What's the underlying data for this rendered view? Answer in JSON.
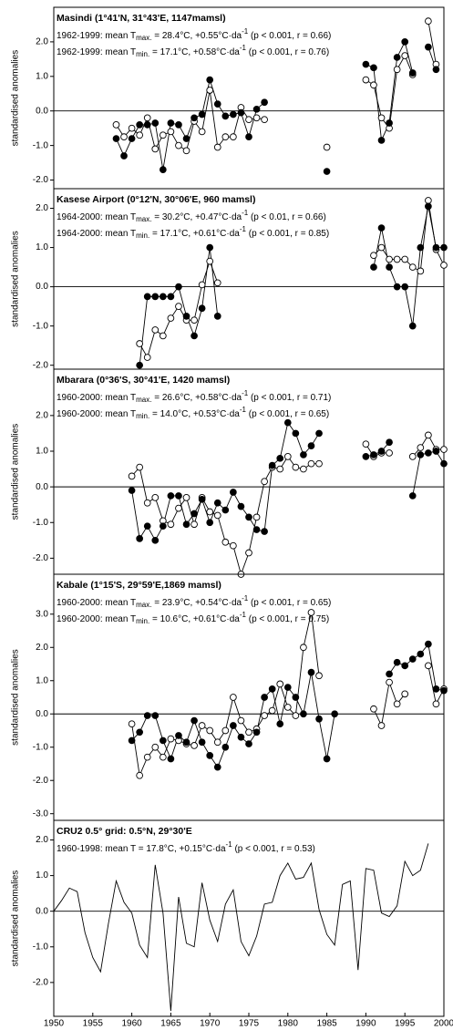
{
  "chart_data": [
    {
      "type": "line",
      "markers": true,
      "title": "Masindi (1°41'N, 31°43'E, 1147mamsl)",
      "stats": [
        {
          "prefix": "1962-1999: mean T",
          "sub": "max.",
          "mid": " = 28.4°C, +0.55°C·da",
          "sup": "-1",
          "suffix": " (p < 0.001, r = 0.66)"
        },
        {
          "prefix": "1962-1999: mean T",
          "sub": "min.",
          "mid": " = 17.1°C, +0.58°C·da",
          "sup": "-1",
          "suffix": " (p < 0.001, r = 0.76)"
        }
      ],
      "ylabel": "standardised anomalies",
      "xlim": [
        1950,
        2000
      ],
      "ylim": [
        -2.25,
        3.0
      ],
      "yticks": [
        {
          "value": -2,
          "label": "-2.0"
        },
        {
          "value": -1,
          "label": "-1.0"
        },
        {
          "value": 0,
          "label": "0.0"
        },
        {
          "value": 1,
          "label": "1.0"
        },
        {
          "value": 2,
          "label": "2.0"
        }
      ],
      "x": [
        1958,
        1959,
        1960,
        1961,
        1962,
        1963,
        1964,
        1965,
        1966,
        1967,
        1968,
        1969,
        1970,
        1971,
        1972,
        1973,
        1974,
        1975,
        1976,
        1977,
        1978,
        1979,
        1980,
        1981,
        1982,
        1983,
        1984,
        1985,
        1986,
        1987,
        1988,
        1989,
        1990,
        1991,
        1992,
        1993,
        1994,
        1995,
        1996,
        1997,
        1998,
        1999
      ],
      "series": [
        {
          "color": "#ffffff",
          "values": [
            -0.4,
            -0.75,
            -0.5,
            -0.7,
            -0.2,
            -1.1,
            -0.7,
            -0.6,
            -1.0,
            -1.15,
            -0.3,
            -0.6,
            0.6,
            -1.05,
            -0.75,
            -0.75,
            0.1,
            -0.25,
            -0.2,
            -0.25,
            null,
            null,
            null,
            null,
            null,
            null,
            null,
            -1.05,
            null,
            null,
            null,
            null,
            0.9,
            0.75,
            -0.2,
            -0.5,
            1.2,
            1.6,
            1.05,
            null,
            2.6,
            1.35
          ]
        },
        {
          "color": "#000000",
          "values": [
            -0.8,
            -1.3,
            -0.8,
            -0.4,
            -0.4,
            -0.35,
            -1.7,
            -0.35,
            -0.4,
            -0.8,
            -0.2,
            -0.1,
            0.9,
            0.2,
            -0.15,
            -0.1,
            -0.05,
            -0.75,
            0.05,
            0.25,
            null,
            null,
            null,
            null,
            null,
            null,
            null,
            -1.75,
            null,
            null,
            null,
            null,
            1.35,
            1.25,
            -0.85,
            -0.35,
            1.55,
            2.0,
            1.1,
            null,
            1.85,
            1.2
          ]
        }
      ]
    },
    {
      "type": "line",
      "markers": true,
      "title": "Kasese Airport (0°12'N, 30°06'E, 960 mamsl)",
      "stats": [
        {
          "prefix": "1964-2000: mean T",
          "sub": "max.",
          "mid": " = 30.2°C, +0.47°C·da",
          "sup": "-1",
          "suffix": " (p < 0.01, r = 0.66)"
        },
        {
          "prefix": "1964-2000: mean T",
          "sub": "min.",
          "mid": " = 17.1°C, +0.61°C·da",
          "sup": "-1",
          "suffix": " (p < 0.001, r = 0.85)"
        }
      ],
      "ylabel": "standardised anomalies",
      "xlim": [
        1950,
        2000
      ],
      "ylim": [
        -2.1,
        2.5
      ],
      "yticks": [
        {
          "value": -2,
          "label": "-2.0"
        },
        {
          "value": -1,
          "label": "-1.0"
        },
        {
          "value": 0,
          "label": "0.0"
        },
        {
          "value": 1,
          "label": "1.0"
        },
        {
          "value": 2,
          "label": "2.0"
        }
      ],
      "x": [
        1961,
        1962,
        1963,
        1964,
        1965,
        1966,
        1967,
        1968,
        1969,
        1970,
        1971,
        1972,
        1973,
        1974,
        1975,
        1976,
        1977,
        1978,
        1979,
        1980,
        1981,
        1982,
        1983,
        1984,
        1985,
        1986,
        1987,
        1988,
        1989,
        1990,
        1991,
        1992,
        1993,
        1994,
        1995,
        1996,
        1997,
        1998,
        1999,
        2000
      ],
      "series": [
        {
          "color": "#ffffff",
          "values": [
            -1.45,
            -1.8,
            -1.1,
            -1.25,
            -0.8,
            -0.5,
            -0.85,
            -0.85,
            0.05,
            0.65,
            0.1,
            null,
            null,
            null,
            null,
            null,
            null,
            null,
            null,
            null,
            null,
            null,
            null,
            null,
            null,
            null,
            null,
            null,
            null,
            null,
            0.8,
            1.0,
            0.7,
            0.7,
            0.7,
            0.5,
            0.4,
            2.2,
            0.95,
            0.55
          ]
        },
        {
          "color": "#000000",
          "values": [
            -2.0,
            -0.25,
            -0.25,
            -0.25,
            -0.25,
            0.0,
            -0.75,
            -1.25,
            -0.55,
            1.0,
            -0.75,
            null,
            null,
            null,
            null,
            null,
            null,
            null,
            null,
            null,
            null,
            null,
            null,
            null,
            null,
            null,
            null,
            null,
            null,
            null,
            0.5,
            1.5,
            0.5,
            0.0,
            0.0,
            -1.0,
            1.0,
            2.05,
            1.0,
            1.0
          ]
        }
      ]
    },
    {
      "type": "line",
      "markers": true,
      "title": "Mbarara (0°36'S, 30°41'E, 1420 mamsl)",
      "stats": [
        {
          "prefix": "1960-2000: mean T",
          "sub": "max.",
          "mid": " = 26.6°C, +0.58°C·da",
          "sup": "-1",
          "suffix": " (p < 0.001, r = 0.71)"
        },
        {
          "prefix": "1960-2000: mean T",
          "sub": "min.",
          "mid": " = 14.0°C, +0.53°C·da",
          "sup": "-1",
          "suffix": " (p < 0.001, r = 0.65)"
        }
      ],
      "ylabel": "standardised anomalies",
      "xlim": [
        1950,
        2000
      ],
      "ylim": [
        -2.45,
        3.3
      ],
      "yticks": [
        {
          "value": -2,
          "label": "-2.0"
        },
        {
          "value": -1,
          "label": "-1.0"
        },
        {
          "value": 0,
          "label": "0.0"
        },
        {
          "value": 1,
          "label": "1.0"
        },
        {
          "value": 2,
          "label": "2.0"
        }
      ],
      "x": [
        1960,
        1961,
        1962,
        1963,
        1964,
        1965,
        1966,
        1967,
        1968,
        1969,
        1970,
        1971,
        1972,
        1973,
        1974,
        1975,
        1976,
        1977,
        1978,
        1979,
        1980,
        1981,
        1982,
        1983,
        1984,
        1985,
        1986,
        1987,
        1988,
        1989,
        1990,
        1991,
        1992,
        1993,
        1994,
        1995,
        1996,
        1997,
        1998,
        1999,
        2000
      ],
      "series": [
        {
          "color": "#ffffff",
          "values": [
            0.3,
            0.55,
            -0.45,
            -0.3,
            -0.95,
            -1.05,
            -0.6,
            -0.3,
            -1.05,
            -0.3,
            -0.7,
            -0.8,
            -1.55,
            -1.65,
            -2.45,
            -1.85,
            -0.85,
            0.15,
            0.55,
            0.5,
            0.85,
            0.55,
            0.5,
            0.65,
            0.65,
            null,
            null,
            null,
            null,
            null,
            1.2,
            0.85,
            0.95,
            0.95,
            null,
            null,
            0.85,
            1.1,
            1.45,
            1.05,
            1.05
          ]
        },
        {
          "color": "#000000",
          "values": [
            -0.1,
            -1.45,
            -1.1,
            -1.5,
            -1.1,
            -0.25,
            -0.25,
            -1.05,
            -0.75,
            -0.35,
            -1.0,
            -0.45,
            -0.65,
            -0.15,
            -0.55,
            -0.85,
            -1.2,
            -1.25,
            0.6,
            0.8,
            1.8,
            1.5,
            0.9,
            1.15,
            1.5,
            null,
            null,
            null,
            null,
            null,
            0.85,
            0.9,
            1.0,
            1.25,
            null,
            null,
            -0.25,
            0.9,
            0.95,
            1.0,
            0.65
          ]
        }
      ]
    },
    {
      "type": "line",
      "markers": true,
      "title": "Kabale (1°15'S, 29°59'E,1869 mamsl)",
      "stats": [
        {
          "prefix": "1960-2000: mean T",
          "sub": "max.",
          "mid": " = 23.9°C, +0.54°C·da",
          "sup": "-1",
          "suffix": " (p < 0.001, r = 0.65)"
        },
        {
          "prefix": "1960-2000: mean T",
          "sub": "min.",
          "mid": " = 10.6°C, +0.61°C·da",
          "sup": "-1",
          "suffix": " (p < 0.001, r = 0.75)"
        }
      ],
      "ylabel": "standardised anomalies",
      "xlim": [
        1950,
        2000
      ],
      "ylim": [
        -3.2,
        4.2
      ],
      "yticks": [
        {
          "value": -3,
          "label": "-3.0"
        },
        {
          "value": -2,
          "label": "-2.0"
        },
        {
          "value": -1,
          "label": "-1.0"
        },
        {
          "value": 0,
          "label": "0.0"
        },
        {
          "value": 1,
          "label": "1.0"
        },
        {
          "value": 2,
          "label": "2.0"
        },
        {
          "value": 3,
          "label": "3.0"
        }
      ],
      "x": [
        1960,
        1961,
        1962,
        1963,
        1964,
        1965,
        1966,
        1967,
        1968,
        1969,
        1970,
        1971,
        1972,
        1973,
        1974,
        1975,
        1976,
        1977,
        1978,
        1979,
        1980,
        1981,
        1982,
        1983,
        1984,
        1985,
        1986,
        1987,
        1988,
        1989,
        1990,
        1991,
        1992,
        1993,
        1994,
        1995,
        1996,
        1997,
        1998,
        1999,
        2000
      ],
      "series": [
        {
          "color": "#ffffff",
          "values": [
            -0.3,
            -1.85,
            -1.3,
            -1.0,
            -1.3,
            -0.75,
            -0.8,
            -0.9,
            -0.95,
            -0.35,
            -0.5,
            -0.85,
            -0.5,
            0.5,
            -0.2,
            -0.55,
            -0.45,
            -0.05,
            0.1,
            0.9,
            0.2,
            -0.05,
            2.0,
            3.05,
            1.15,
            null,
            null,
            null,
            null,
            null,
            null,
            0.15,
            -0.35,
            0.95,
            0.3,
            0.6,
            null,
            null,
            1.45,
            0.3,
            0.75
          ]
        },
        {
          "color": "#000000",
          "values": [
            -0.8,
            -0.55,
            -0.05,
            -0.05,
            -0.8,
            -1.35,
            -0.65,
            -0.85,
            -0.2,
            -0.85,
            -1.25,
            -1.6,
            -1.0,
            -0.35,
            -0.7,
            -0.9,
            -0.55,
            0.5,
            0.75,
            -0.3,
            0.8,
            0.5,
            0.0,
            1.25,
            -0.15,
            -1.35,
            0.0,
            null,
            null,
            null,
            null,
            null,
            null,
            1.2,
            1.55,
            1.45,
            1.65,
            1.8,
            2.1,
            0.75,
            0.7
          ]
        }
      ]
    },
    {
      "type": "line",
      "markers": false,
      "title": "CRU2 0.5° grid: 0.5°N, 29°30'E",
      "stats": [
        {
          "prefix": "1960-1998: mean T = 17.8°C, +0.15°C·da",
          "sup": "-1",
          "suffix": " (p < 0.001, r = 0.53)"
        }
      ],
      "ylabel": "standardised anomalies",
      "xlim": [
        1950,
        2000
      ],
      "ylim": [
        -2.95,
        2.55
      ],
      "yticks": [
        {
          "value": -2,
          "label": "-2.0"
        },
        {
          "value": -1,
          "label": "-1.0"
        },
        {
          "value": 0,
          "label": "0.0"
        },
        {
          "value": 1,
          "label": "1.0"
        },
        {
          "value": 2,
          "label": "2.0"
        }
      ],
      "xticks": [
        1950,
        1955,
        1960,
        1965,
        1970,
        1975,
        1980,
        1985,
        1990,
        1995,
        2000
      ],
      "x": [
        1950,
        1951,
        1952,
        1953,
        1954,
        1955,
        1956,
        1957,
        1958,
        1959,
        1960,
        1961,
        1962,
        1963,
        1964,
        1965,
        1966,
        1967,
        1968,
        1969,
        1970,
        1971,
        1972,
        1973,
        1974,
        1975,
        1976,
        1977,
        1978,
        1979,
        1980,
        1981,
        1982,
        1983,
        1984,
        1985,
        1986,
        1987,
        1988,
        1989,
        1990,
        1991,
        1992,
        1993,
        1994,
        1995,
        1996,
        1997,
        1998
      ],
      "series": [
        {
          "color": "#000000",
          "values": [
            0.0,
            0.3,
            0.65,
            0.55,
            -0.6,
            -1.3,
            -1.7,
            -0.35,
            0.85,
            0.25,
            -0.05,
            -0.95,
            -1.3,
            1.3,
            -0.05,
            -2.8,
            0.4,
            -0.9,
            -1.0,
            0.8,
            -0.25,
            -0.85,
            0.2,
            0.6,
            -0.85,
            -1.25,
            -0.7,
            0.2,
            0.25,
            1.0,
            1.35,
            0.9,
            0.95,
            1.35,
            0.05,
            -0.65,
            -0.95,
            0.75,
            0.85,
            -1.65,
            1.2,
            1.15,
            -0.05,
            -0.15,
            0.15,
            1.4,
            1.0,
            1.15,
            1.9
          ]
        }
      ]
    }
  ]
}
